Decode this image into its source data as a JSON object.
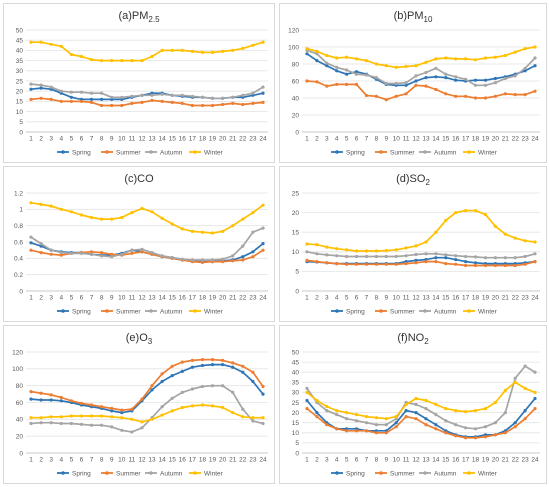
{
  "colors": {
    "Spring": "#2e75b6",
    "Summer": "#ed7d31",
    "Autumn": "#a5a5a5",
    "Winter": "#ffc000"
  },
  "legend": [
    "Spring",
    "Summer",
    "Autumn",
    "Winter"
  ],
  "chart_data": [
    {
      "type": "line",
      "title_main": "(a)PM",
      "title_sub": "2.5",
      "x": [
        1,
        2,
        3,
        4,
        5,
        6,
        7,
        8,
        9,
        10,
        11,
        12,
        13,
        14,
        15,
        16,
        17,
        18,
        19,
        20,
        21,
        22,
        23,
        24
      ],
      "ylim": [
        0,
        50
      ],
      "yticks": [
        "0",
        "5",
        "10",
        "15",
        "20",
        "25",
        "30",
        "35",
        "40",
        "45",
        "50"
      ],
      "series": [
        {
          "name": "Spring",
          "values": [
            21,
            21.5,
            21,
            19,
            17,
            16,
            16,
            16,
            16,
            16,
            17,
            18,
            19,
            19,
            18,
            17.5,
            17,
            17,
            16.5,
            16.5,
            17,
            17,
            18,
            19
          ]
        },
        {
          "name": "Summer",
          "values": [
            16,
            16.5,
            16,
            15,
            15,
            15,
            14.5,
            13,
            13,
            13,
            14,
            14.5,
            15.5,
            15,
            14.5,
            14,
            13,
            13,
            13,
            13.5,
            14,
            13.5,
            14,
            14.5
          ]
        },
        {
          "name": "Autumn",
          "values": [
            23.5,
            23,
            22,
            20,
            19.5,
            19.5,
            19,
            19,
            17,
            17,
            17.5,
            18,
            18,
            18.5,
            18,
            18,
            17.5,
            17,
            16.5,
            16.5,
            17,
            18,
            19,
            22
          ]
        },
        {
          "name": "Winter",
          "values": [
            44,
            44,
            43,
            42,
            38,
            37,
            35.5,
            35,
            35,
            35,
            35,
            35,
            37,
            40,
            40,
            40,
            39.5,
            39,
            39,
            39.5,
            40,
            41,
            42.5,
            44
          ]
        }
      ]
    },
    {
      "type": "line",
      "title_main": "(b)PM",
      "title_sub": "10",
      "x": [
        1,
        2,
        3,
        4,
        5,
        6,
        7,
        8,
        9,
        10,
        11,
        12,
        13,
        14,
        15,
        16,
        17,
        18,
        19,
        20,
        21,
        22,
        23,
        24
      ],
      "ylim": [
        0,
        120
      ],
      "yticks": [
        "0",
        "20",
        "40",
        "60",
        "80",
        "100",
        "120"
      ],
      "series": [
        {
          "name": "Spring",
          "values": [
            92,
            84,
            78,
            72,
            68,
            71,
            68,
            62,
            56,
            55,
            55,
            60,
            64,
            65,
            64,
            61,
            60,
            61,
            61,
            63,
            65,
            68,
            72,
            78
          ]
        },
        {
          "name": "Summer",
          "values": [
            60,
            59,
            54,
            56,
            56,
            56,
            43,
            42,
            38,
            42,
            45,
            55,
            54,
            50,
            45,
            42,
            42,
            40,
            40,
            42,
            45,
            44,
            44,
            48
          ]
        },
        {
          "name": "Autumn",
          "values": [
            96,
            92,
            81,
            76,
            73,
            68,
            67,
            64,
            57,
            57,
            58,
            66,
            70,
            75,
            68,
            65,
            62,
            55,
            55,
            58,
            63,
            66,
            75,
            87
          ]
        },
        {
          "name": "Winter",
          "values": [
            98,
            95,
            90,
            87,
            88,
            86,
            84,
            80,
            78,
            76,
            77,
            78,
            82,
            86,
            87,
            86,
            86,
            85,
            87,
            88,
            90,
            94,
            98,
            100
          ]
        }
      ]
    },
    {
      "type": "line",
      "title_main": "(c)CO",
      "title_sub": "",
      "x": [
        1,
        2,
        3,
        4,
        5,
        6,
        7,
        8,
        9,
        10,
        11,
        12,
        13,
        14,
        15,
        16,
        17,
        18,
        19,
        20,
        21,
        22,
        23,
        24
      ],
      "ylim": [
        0,
        1.2
      ],
      "yticks": [
        "0",
        "0.2",
        "0.4",
        "0.6",
        "0.8",
        "1",
        "1.2"
      ],
      "series": [
        {
          "name": "Spring",
          "values": [
            0.59,
            0.55,
            0.5,
            0.48,
            0.47,
            0.47,
            0.45,
            0.44,
            0.44,
            0.46,
            0.5,
            0.48,
            0.45,
            0.42,
            0.4,
            0.38,
            0.37,
            0.36,
            0.36,
            0.37,
            0.38,
            0.42,
            0.48,
            0.58
          ]
        },
        {
          "name": "Summer",
          "values": [
            0.5,
            0.47,
            0.45,
            0.44,
            0.46,
            0.47,
            0.48,
            0.47,
            0.45,
            0.44,
            0.46,
            0.48,
            0.45,
            0.42,
            0.4,
            0.38,
            0.36,
            0.35,
            0.36,
            0.36,
            0.37,
            0.38,
            0.42,
            0.5
          ]
        },
        {
          "name": "Autumn",
          "values": [
            0.66,
            0.58,
            0.5,
            0.47,
            0.46,
            0.46,
            0.45,
            0.43,
            0.42,
            0.45,
            0.5,
            0.51,
            0.47,
            0.43,
            0.41,
            0.39,
            0.38,
            0.38,
            0.38,
            0.39,
            0.43,
            0.55,
            0.72,
            0.77
          ]
        },
        {
          "name": "Winter",
          "values": [
            1.08,
            1.06,
            1.04,
            1.0,
            0.97,
            0.93,
            0.9,
            0.88,
            0.88,
            0.9,
            0.96,
            1.01,
            0.97,
            0.89,
            0.82,
            0.76,
            0.73,
            0.72,
            0.71,
            0.73,
            0.8,
            0.88,
            0.96,
            1.05
          ]
        }
      ]
    },
    {
      "type": "line",
      "title_main": "(d)SO",
      "title_sub": "2",
      "x": [
        1,
        2,
        3,
        4,
        5,
        6,
        7,
        8,
        9,
        10,
        11,
        12,
        13,
        14,
        15,
        16,
        17,
        18,
        19,
        20,
        21,
        22,
        23,
        24
      ],
      "ylim": [
        0,
        25
      ],
      "yticks": [
        "0",
        "5",
        "10",
        "15",
        "20",
        "25"
      ],
      "series": [
        {
          "name": "Spring",
          "values": [
            7.5,
            7.4,
            7.2,
            7,
            7,
            7,
            7,
            7,
            7,
            7,
            7.5,
            7.8,
            8,
            8.5,
            8.5,
            8,
            7.5,
            7.2,
            7,
            7,
            7,
            7,
            7.2,
            7.5
          ]
        },
        {
          "name": "Summer",
          "values": [
            7.8,
            7.5,
            7.2,
            7,
            6.8,
            6.8,
            6.8,
            6.8,
            6.8,
            6.8,
            7,
            7.2,
            7.5,
            7.5,
            7,
            6.8,
            6.5,
            6.5,
            6.5,
            6.5,
            6.5,
            6.5,
            6.8,
            7.5
          ]
        },
        {
          "name": "Autumn",
          "values": [
            10,
            9.5,
            9.2,
            9,
            8.8,
            8.8,
            8.8,
            8.8,
            8.8,
            8.8,
            9,
            9.3,
            9.5,
            9.5,
            9.2,
            9,
            8.8,
            8.7,
            8.5,
            8.5,
            8.5,
            8.5,
            8.8,
            9.5
          ]
        },
        {
          "name": "Winter",
          "values": [
            12,
            11.8,
            11.2,
            10.8,
            10.5,
            10.2,
            10.2,
            10.2,
            10.3,
            10.5,
            11,
            11.5,
            12.5,
            15,
            18,
            20,
            20.5,
            20.5,
            19.5,
            16.5,
            14.5,
            13.5,
            12.8,
            12.5
          ]
        }
      ]
    },
    {
      "type": "line",
      "title_main": "(e)O",
      "title_sub": "3",
      "x": [
        1,
        2,
        3,
        4,
        5,
        6,
        7,
        8,
        9,
        10,
        11,
        12,
        13,
        14,
        15,
        16,
        17,
        18,
        19,
        20,
        21,
        22,
        23,
        24
      ],
      "ylim": [
        0,
        120
      ],
      "yticks": [
        "0",
        "20",
        "40",
        "60",
        "80",
        "100",
        "120"
      ],
      "series": [
        {
          "name": "Spring",
          "values": [
            64,
            63,
            63,
            62,
            60,
            57,
            55,
            53,
            50,
            48,
            50,
            62,
            75,
            85,
            92,
            97,
            102,
            104,
            105,
            105,
            102,
            96,
            85,
            70
          ]
        },
        {
          "name": "Summer",
          "values": [
            73,
            71,
            69,
            66,
            62,
            59,
            57,
            55,
            53,
            51,
            52,
            64,
            80,
            94,
            103,
            108,
            110,
            111,
            111,
            110,
            107,
            103,
            96,
            79
          ]
        },
        {
          "name": "Autumn",
          "values": [
            35,
            36,
            36,
            35,
            35,
            34,
            33,
            33,
            31,
            27,
            25,
            30,
            42,
            55,
            65,
            72,
            76,
            79,
            80,
            80,
            72,
            52,
            38,
            35
          ]
        },
        {
          "name": "Winter",
          "values": [
            42,
            42,
            43,
            43,
            44,
            44,
            44,
            44,
            43,
            42,
            40,
            37,
            40,
            45,
            50,
            54,
            56,
            57,
            56,
            54,
            48,
            43,
            42,
            42
          ]
        }
      ]
    },
    {
      "type": "line",
      "title_main": "(f)NO",
      "title_sub": "2",
      "x": [
        1,
        2,
        3,
        4,
        5,
        6,
        7,
        8,
        9,
        10,
        11,
        12,
        13,
        14,
        15,
        16,
        17,
        18,
        19,
        20,
        21,
        22,
        23,
        24
      ],
      "ylim": [
        0,
        50
      ],
      "yticks": [
        "0",
        "5",
        "10",
        "15",
        "20",
        "25",
        "30",
        "35",
        "40",
        "45",
        "50"
      ],
      "series": [
        {
          "name": "Spring",
          "values": [
            26,
            20,
            15,
            12,
            12,
            12,
            11,
            11,
            11,
            15,
            21,
            20,
            17,
            14,
            11,
            9,
            8,
            8,
            9,
            9,
            11,
            15,
            21,
            27
          ]
        },
        {
          "name": "Summer",
          "values": [
            22,
            18,
            14,
            12,
            11,
            11,
            11,
            10,
            10,
            13,
            18,
            17,
            14,
            12,
            10,
            8.5,
            7.5,
            7.5,
            8,
            9,
            10,
            13,
            17,
            22
          ]
        },
        {
          "name": "Autumn",
          "values": [
            32,
            25,
            21,
            19,
            17,
            16,
            15,
            14,
            14,
            17,
            25,
            24,
            22,
            19,
            16,
            14,
            12.5,
            12,
            13,
            15,
            20,
            37,
            43,
            40
          ]
        },
        {
          "name": "Winter",
          "values": [
            30,
            26,
            23,
            21,
            20,
            19,
            18,
            17.5,
            17,
            18,
            24,
            27,
            26,
            24,
            22,
            21,
            20.5,
            21,
            22,
            25,
            31,
            35,
            32,
            30
          ]
        }
      ]
    }
  ]
}
